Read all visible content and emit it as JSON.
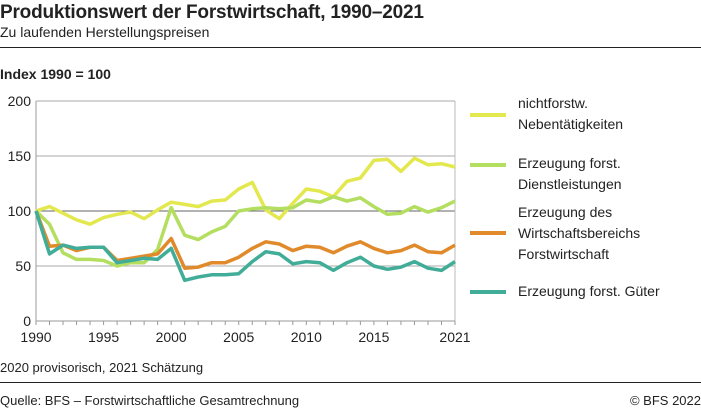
{
  "title": "Produktionswert der Forstwirtschaft, 1990–2021",
  "subtitle": "Zu laufenden Herstellungspreisen",
  "note": "2020 provisorisch, 2021 Schätzung",
  "source": "Quelle: BFS – Forstwirtschaftliche Gesamtrechnung",
  "copyright": "© BFS 2022",
  "chart_data": {
    "type": "line",
    "ylabel": "Index 1990 = 100",
    "ylim": [
      0,
      200
    ],
    "yticks": [
      0,
      50,
      100,
      150,
      200
    ],
    "xticks": [
      1990,
      1995,
      2000,
      2005,
      2010,
      2015,
      2021
    ],
    "xtick_labels": [
      "1990",
      "1995",
      "2000",
      "2005",
      "2010",
      "2015",
      "2021"
    ],
    "ytick_labels": [
      "0",
      "50",
      "100",
      "150",
      "200"
    ],
    "grid": true,
    "legend": "right",
    "x": [
      1990,
      1991,
      1992,
      1993,
      1994,
      1995,
      1996,
      1997,
      1998,
      1999,
      2000,
      2001,
      2002,
      2003,
      2004,
      2005,
      2006,
      2007,
      2008,
      2009,
      2010,
      2011,
      2012,
      2013,
      2014,
      2015,
      2016,
      2017,
      2018,
      2019,
      2020,
      2021
    ],
    "series": [
      {
        "name": "nichtforstw. Nebentätigkeiten",
        "name_lines": [
          "nichtforstw.",
          "Nebentätigkeiten"
        ],
        "color": "#e3e84f",
        "values": [
          100,
          104,
          98,
          92,
          88,
          94,
          97,
          99,
          93,
          101,
          108,
          106,
          104,
          109,
          110,
          120,
          126,
          101,
          93,
          107,
          120,
          118,
          113,
          127,
          130,
          146,
          147,
          136,
          148,
          142,
          143,
          140
        ]
      },
      {
        "name": "Erzeugung forst. Dienstleistungen",
        "name_lines": [
          "Erzeugung forst.",
          "Dienstleistungen"
        ],
        "color": "#b4de5f",
        "values": [
          100,
          88,
          62,
          56,
          56,
          55,
          50,
          53,
          53,
          65,
          103,
          78,
          74,
          81,
          86,
          100,
          102,
          103,
          102,
          103,
          110,
          108,
          113,
          109,
          112,
          104,
          97,
          98,
          104,
          99,
          103,
          109
        ]
      },
      {
        "name": "Erzeugung des Wirtschaftsbereichs Forstwirtschaft",
        "name_lines": [
          "Erzeugung des",
          "Wirtschaftsbereichs",
          "Forstwirtschaft"
        ],
        "color": "#e08a2b",
        "values": [
          100,
          68,
          69,
          64,
          67,
          67,
          55,
          57,
          59,
          61,
          75,
          48,
          49,
          53,
          53,
          58,
          66,
          72,
          70,
          64,
          68,
          67,
          62,
          68,
          72,
          66,
          62,
          64,
          69,
          63,
          62,
          69
        ]
      },
      {
        "name": "Erzeugung forst. Güter",
        "name_lines": [
          "Erzeugung forst. Güter"
        ],
        "color": "#41ad98",
        "values": [
          100,
          61,
          69,
          66,
          67,
          67,
          53,
          55,
          57,
          56,
          66,
          37,
          40,
          42,
          42,
          43,
          54,
          63,
          61,
          52,
          54,
          53,
          46,
          53,
          58,
          50,
          47,
          49,
          54,
          48,
          46,
          54
        ]
      }
    ]
  }
}
